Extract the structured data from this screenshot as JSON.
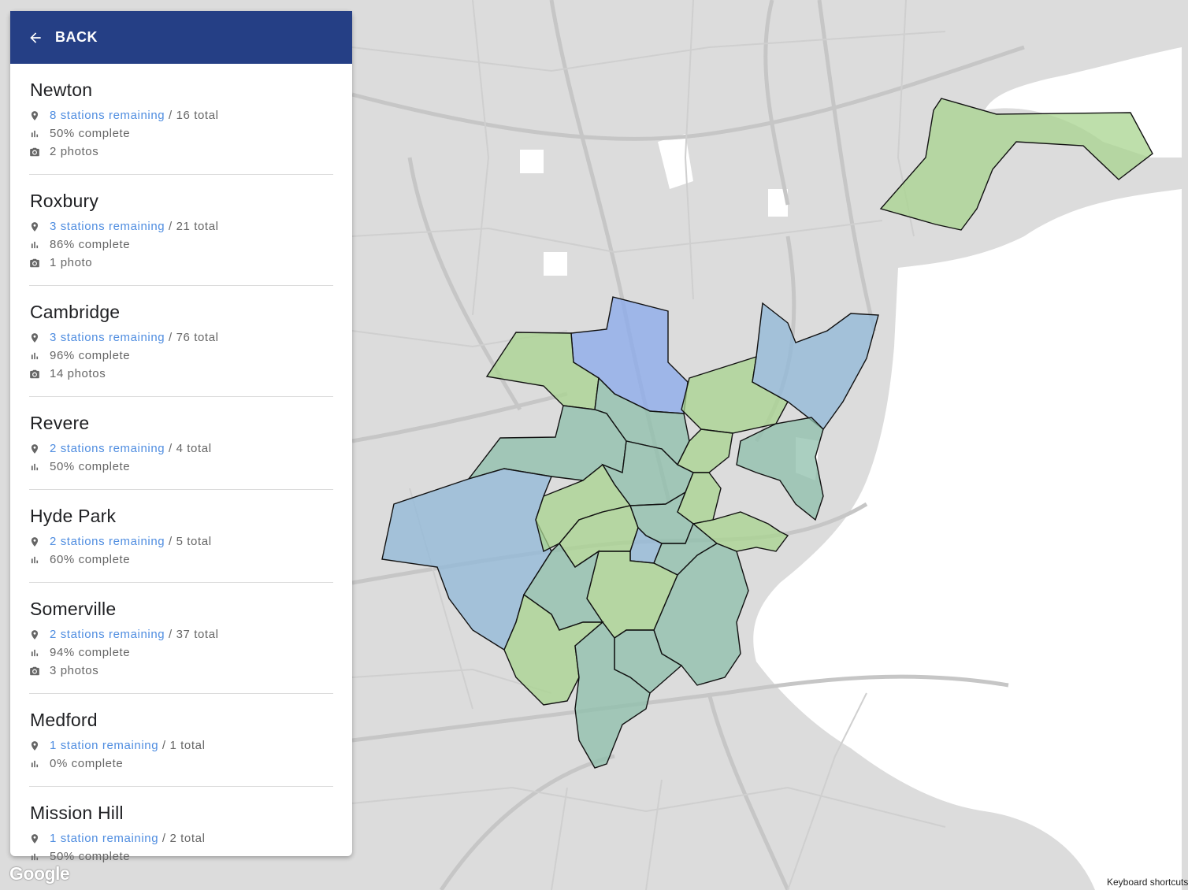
{
  "colors": {
    "header": "#253f85",
    "link": "#4f8de0",
    "map_background": "#dcdcdc",
    "road": "#c6c6c6",
    "water": "#ffffff",
    "region_green": "#a8d48f",
    "region_teal": "#8ebfab",
    "region_blue": "#90b8d8",
    "region_periwinkle": "#8aa9ec"
  },
  "header": {
    "back_label": "BACK",
    "back_icon": "arrow-left-icon"
  },
  "items": [
    {
      "name": "Newton",
      "remaining": "8 stations remaining",
      "total": "/ 16 total",
      "complete": "50% complete",
      "photos": "2 photos"
    },
    {
      "name": "Roxbury",
      "remaining": "3 stations remaining",
      "total": "/ 21 total",
      "complete": "86% complete",
      "photos": "1 photo"
    },
    {
      "name": "Cambridge",
      "remaining": "3 stations remaining",
      "total": "/ 76 total",
      "complete": "96% complete",
      "photos": "14 photos"
    },
    {
      "name": "Revere",
      "remaining": "2 stations remaining",
      "total": "/ 4 total",
      "complete": "50% complete"
    },
    {
      "name": "Hyde Park",
      "remaining": "2 stations remaining",
      "total": "/ 5 total",
      "complete": "60% complete"
    },
    {
      "name": "Somerville",
      "remaining": "2 stations remaining",
      "total": "/ 37 total",
      "complete": "94% complete",
      "photos": "3 photos"
    },
    {
      "name": "Medford",
      "remaining": "1 station remaining",
      "total": "/ 1 total",
      "complete": "0% complete"
    },
    {
      "name": "Mission Hill",
      "remaining": "1 station remaining",
      "total": "/ 2 total",
      "complete": "50% complete"
    }
  ],
  "map": {
    "logo": "Google",
    "keyboard_shortcuts": "Keyboard shortcuts"
  }
}
